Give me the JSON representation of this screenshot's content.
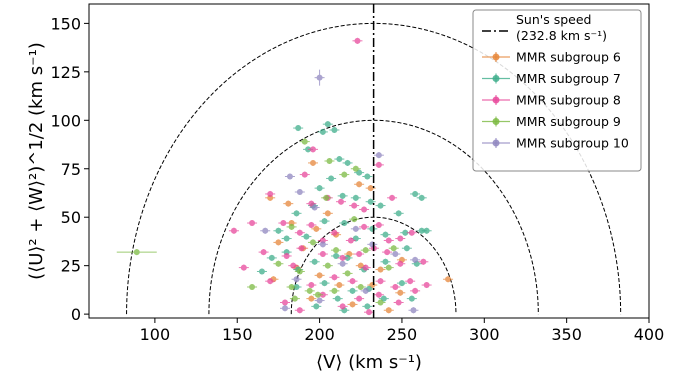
{
  "chart_data": {
    "type": "scatter",
    "xlabel": "⟨V⟩ (km s⁻¹)",
    "ylabel": "(⟨U⟩² + ⟨W⟩²)^1/2  (km s⁻¹)",
    "xlim": [
      60,
      400
    ],
    "ylim": [
      -2,
      160
    ],
    "x_ticks": [
      100,
      150,
      200,
      250,
      300,
      350,
      400
    ],
    "y_ticks": [
      0,
      25,
      50,
      75,
      100,
      125,
      150
    ],
    "grid": false,
    "legend_position": "top-right",
    "sun_speed": {
      "value": 232.8,
      "label_line1": "Sun's speed",
      "label_line2": "(232.8 km s⁻¹)"
    },
    "circle_radii": [
      50,
      100,
      150
    ],
    "series": [
      {
        "name": "MMR subgroup 6",
        "color": "#e6863a",
        "points": [
          [
            170,
            60
          ],
          [
            196,
            78
          ],
          [
            181,
            57
          ],
          [
            205,
            52
          ],
          [
            183,
            47
          ],
          [
            198,
            44
          ],
          [
            210,
            41
          ],
          [
            175,
            37
          ],
          [
            190,
            34
          ],
          [
            218,
            31
          ],
          [
            186,
            24
          ],
          [
            172,
            18
          ],
          [
            225,
            25
          ],
          [
            237,
            23
          ],
          [
            250,
            28
          ],
          [
            200,
            20
          ],
          [
            212,
            15
          ],
          [
            195,
            8
          ],
          [
            220,
            5
          ],
          [
            249,
            11
          ],
          [
            278,
            18
          ],
          [
            231,
            65
          ],
          [
            224,
            67
          ],
          [
            242,
            2
          ],
          [
            232,
            15
          ]
        ]
      },
      {
        "name": "MMR subgroup 7",
        "color": "#3fae8c",
        "points": [
          [
            187,
            96
          ],
          [
            202,
            94
          ],
          [
            205,
            98
          ],
          [
            209,
            95
          ],
          [
            212,
            80
          ],
          [
            217,
            78
          ],
          [
            224,
            73
          ],
          [
            229,
            71
          ],
          [
            193,
            85
          ],
          [
            207,
            70
          ],
          [
            200,
            65
          ],
          [
            214,
            61
          ],
          [
            222,
            60
          ],
          [
            196,
            56
          ],
          [
            231,
            58
          ],
          [
            237,
            56
          ],
          [
            248,
            52
          ],
          [
            258,
            62
          ],
          [
            262,
            60
          ],
          [
            265,
            43
          ],
          [
            262,
            43
          ],
          [
            186,
            52
          ],
          [
            175,
            43
          ],
          [
            180,
            39
          ],
          [
            192,
            40
          ],
          [
            203,
            48
          ],
          [
            215,
            47
          ],
          [
            222,
            39
          ],
          [
            232,
            44
          ],
          [
            240,
            41
          ],
          [
            252,
            42
          ],
          [
            171,
            29
          ],
          [
            180,
            32
          ],
          [
            187,
            23
          ],
          [
            197,
            27
          ],
          [
            210,
            30
          ],
          [
            217,
            29
          ],
          [
            227,
            23
          ],
          [
            240,
            27
          ],
          [
            253,
            34
          ],
          [
            259,
            26
          ],
          [
            165,
            22
          ],
          [
            186,
            14
          ],
          [
            203,
            16
          ],
          [
            220,
            12
          ],
          [
            230,
            13
          ],
          [
            239,
            8
          ],
          [
            256,
            8
          ],
          [
            250,
            16
          ],
          [
            211,
            8
          ],
          [
            198,
            4
          ],
          [
            215,
            2
          ],
          [
            229,
            4
          ]
        ]
      },
      {
        "name": "MMR subgroup 8",
        "color": "#e8489b",
        "points": [
          [
            223,
            141
          ],
          [
            196,
            85
          ],
          [
            170,
            62
          ],
          [
            191,
            72
          ],
          [
            195,
            57
          ],
          [
            205,
            60
          ],
          [
            213,
            58
          ],
          [
            221,
            56
          ],
          [
            227,
            54
          ],
          [
            236,
            77
          ],
          [
            244,
            60
          ],
          [
            148,
            43
          ],
          [
            159,
            47
          ],
          [
            178,
            47
          ],
          [
            188,
            42
          ],
          [
            195,
            46
          ],
          [
            202,
            38
          ],
          [
            209,
            42
          ],
          [
            219,
            38
          ],
          [
            227,
            45
          ],
          [
            236,
            46
          ],
          [
            242,
            38
          ],
          [
            249,
            39
          ],
          [
            256,
            42
          ],
          [
            154,
            24
          ],
          [
            166,
            32
          ],
          [
            180,
            30
          ],
          [
            189,
            34
          ],
          [
            202,
            31
          ],
          [
            214,
            29
          ],
          [
            224,
            31
          ],
          [
            233,
            34
          ],
          [
            241,
            32
          ],
          [
            249,
            26
          ],
          [
            263,
            27
          ],
          [
            170,
            17
          ],
          [
            184,
            25
          ],
          [
            195,
            15
          ],
          [
            209,
            19
          ],
          [
            220,
            17
          ],
          [
            228,
            24
          ],
          [
            237,
            17
          ],
          [
            246,
            14
          ],
          [
            255,
            17
          ],
          [
            265,
            15
          ],
          [
            179,
            6
          ],
          [
            188,
            2
          ],
          [
            202,
            10
          ],
          [
            214,
            4
          ],
          [
            224,
            8
          ],
          [
            236,
            10
          ],
          [
            248,
            6
          ],
          [
            258,
            12
          ],
          [
            230,
            1
          ]
        ]
      },
      {
        "name": "MMR subgroup 9",
        "color": "#7cba42",
        "points": [
          [
            89,
            32
          ],
          [
            191,
            89
          ],
          [
            206,
            79
          ],
          [
            215,
            72
          ],
          [
            222,
            75
          ],
          [
            204,
            60
          ],
          [
            221,
            49
          ],
          [
            183,
            45
          ],
          [
            196,
            37
          ],
          [
            210,
            33
          ],
          [
            228,
            33
          ],
          [
            245,
            34
          ],
          [
            175,
            26
          ],
          [
            188,
            22
          ],
          [
            205,
            25
          ],
          [
            217,
            21
          ],
          [
            242,
            24
          ],
          [
            183,
            14
          ],
          [
            194,
            12
          ],
          [
            209,
            12
          ],
          [
            225,
            14
          ],
          [
            185,
            8
          ],
          [
            199,
            10
          ],
          [
            159,
            14
          ],
          [
            237,
            6
          ]
        ]
      },
      {
        "name": "MMR subgroup 10",
        "color": "#8f86c0",
        "points": [
          [
            200,
            122
          ],
          [
            236,
            82
          ],
          [
            182,
            71
          ],
          [
            188,
            63
          ],
          [
            197,
            55
          ],
          [
            222,
            44
          ],
          [
            202,
            36
          ],
          [
            167,
            43
          ],
          [
            232,
            36
          ],
          [
            246,
            31
          ],
          [
            258,
            28
          ],
          [
            214,
            26
          ],
          [
            186,
            18
          ],
          [
            200,
            7
          ],
          [
            228,
            12
          ],
          [
            257,
            2
          ],
          [
            179,
            3
          ]
        ]
      }
    ]
  }
}
